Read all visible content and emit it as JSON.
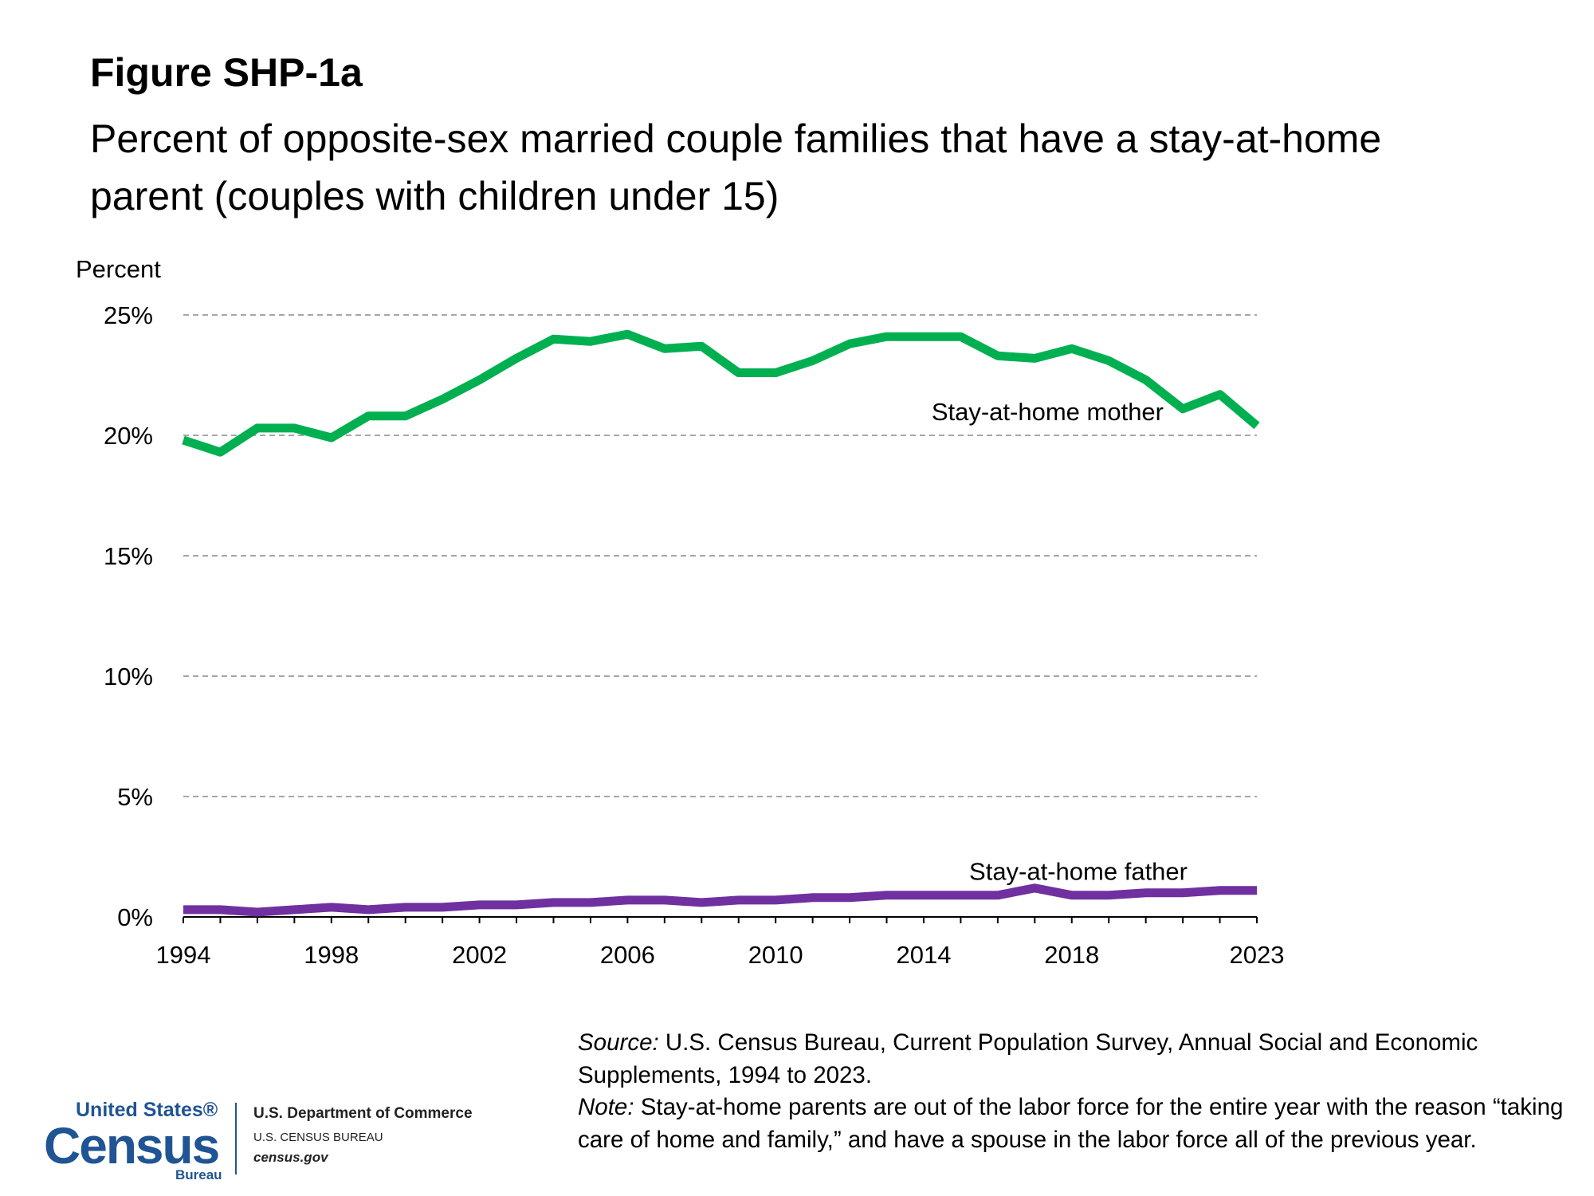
{
  "header": {
    "title": "Figure SHP-1a",
    "subtitle": "Percent of opposite-sex married couple families that have a stay-at-home parent (couples with children under 15)"
  },
  "chart_data": {
    "type": "line",
    "ylabel": "Percent",
    "ylim": [
      0,
      25
    ],
    "yticks": [
      "0%",
      "5%",
      "10%",
      "15%",
      "20%",
      "25%"
    ],
    "xticks": [
      "1994",
      "1998",
      "2002",
      "2006",
      "2010",
      "2014",
      "2018",
      "2023"
    ],
    "grid": true,
    "x": [
      1994,
      1995,
      1996,
      1997,
      1998,
      1999,
      2000,
      2001,
      2002,
      2003,
      2004,
      2005,
      2006,
      2007,
      2008,
      2009,
      2010,
      2011,
      2012,
      2013,
      2014,
      2015,
      2016,
      2017,
      2018,
      2019,
      2020,
      2021,
      2022,
      2023
    ],
    "series": [
      {
        "name": "Stay-at-home mother",
        "color": "#00B050",
        "values": [
          19.8,
          19.3,
          20.3,
          20.3,
          19.9,
          20.8,
          20.8,
          21.5,
          22.3,
          23.2,
          24.0,
          23.9,
          24.2,
          23.6,
          23.7,
          22.6,
          22.6,
          23.1,
          23.8,
          24.1,
          24.1,
          24.1,
          23.3,
          23.2,
          23.6,
          23.1,
          22.3,
          21.1,
          21.7,
          20.4
        ]
      },
      {
        "name": "Stay-at-home father",
        "color": "#7030A0",
        "values": [
          0.3,
          0.3,
          0.2,
          0.3,
          0.4,
          0.3,
          0.4,
          0.4,
          0.5,
          0.5,
          0.6,
          0.6,
          0.7,
          0.7,
          0.6,
          0.7,
          0.7,
          0.8,
          0.8,
          0.9,
          0.9,
          0.9,
          0.9,
          1.2,
          0.9,
          0.9,
          1.0,
          1.0,
          1.1,
          1.1
        ]
      }
    ]
  },
  "footer": {
    "source_lead": "Source:",
    "source_text": " U.S. Census Bureau, Current Population Survey, Annual Social and Economic Supplements, 1994 to 2023.",
    "note_lead": "Note:",
    "note_text": " Stay-at-home parents are out of the labor force for the entire year with the reason “taking care of home and family,” and have a spouse in the labor force all of the previous year."
  },
  "logo": {
    "united_states": "United States®",
    "census": "Census",
    "bureau": "Bureau",
    "department": "U.S. Department of Commerce",
    "bureau_caps": "U.S. CENSUS BUREAU",
    "website": "census.gov"
  }
}
